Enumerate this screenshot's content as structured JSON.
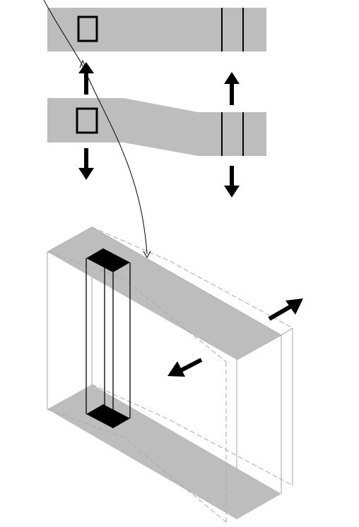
{
  "diagram": {
    "colors": {
      "background": "#ffffff",
      "band_fill": "#bdbdbd",
      "outline": "#000000",
      "box_edge": "#b5b5b5",
      "dashed_edge": "#aaaaaa",
      "marker_fill": "#000000",
      "arrow_fill": "#000000"
    },
    "parts": [
      "top-band-reference",
      "middle-band-deformed",
      "three-dimensional-block",
      "curved-connector",
      "vertical-prism",
      "motion-arrows"
    ]
  }
}
